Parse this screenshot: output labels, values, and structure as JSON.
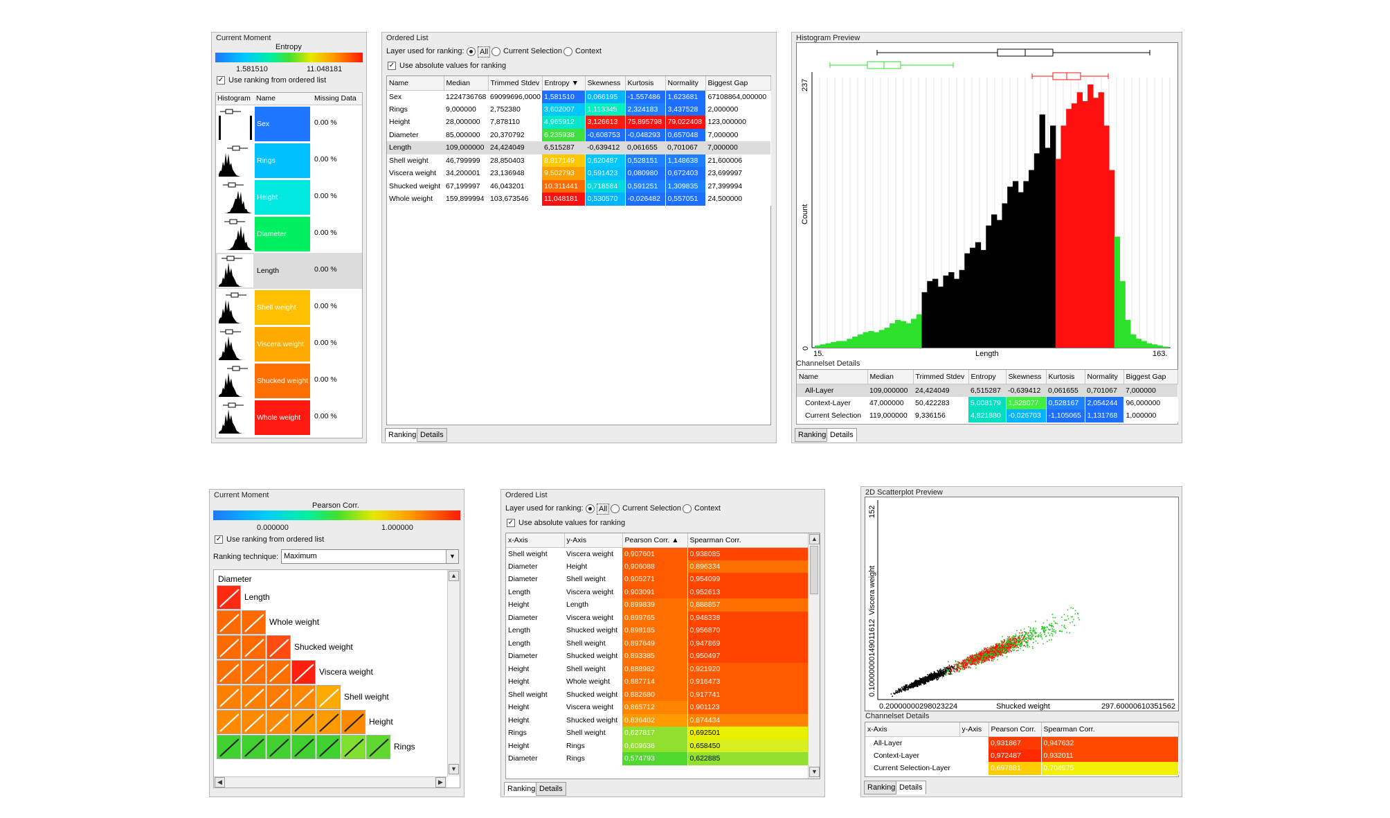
{
  "colors": {
    "blue": "#1e6fff",
    "sky": "#00b4ff",
    "cyan": "#00e8e0",
    "aqua": "#00f0b0",
    "green": "#3ee03a",
    "yellow": "#f4f000",
    "amber": "#ffb000",
    "orange": "#ff7a00",
    "redorange": "#ff4a00",
    "red": "#ff1010"
  },
  "panel1": {
    "title": "Current Moment",
    "measure": "Entropy",
    "min": "1.581510",
    "max": "11.048181",
    "checkbox": "Use ranking from ordered list",
    "headers": [
      "Histogram",
      "Name",
      "Missing Data"
    ],
    "rows": [
      {
        "name": "Sex",
        "missing": "0.00 %",
        "color": "#1e78ff"
      },
      {
        "name": "Rings",
        "missing": "0.00 %",
        "color": "#00c0ff"
      },
      {
        "name": "Height",
        "missing": "0.00 %",
        "color": "#00e8e0"
      },
      {
        "name": "Diameter",
        "missing": "0.00 %",
        "color": "#00f060"
      },
      {
        "name": "Length",
        "missing": "0.00 %",
        "color": ""
      },
      {
        "name": "Shell weight",
        "missing": "0.00 %",
        "color": "#ffc000"
      },
      {
        "name": "Viscera weight",
        "missing": "0.00 %",
        "color": "#ffaa00"
      },
      {
        "name": "Shucked weight",
        "missing": "0.00 %",
        "color": "#ff7000"
      },
      {
        "name": "Whole weight",
        "missing": "0.00 %",
        "color": "#ff1a10"
      }
    ]
  },
  "panel2": {
    "title": "Ordered List",
    "layer_label": "Layer used for ranking:",
    "opt_all": "All",
    "opt_sel": "Current Selection",
    "opt_ctx": "Context",
    "checkbox": "Use absolute values for ranking",
    "headers": [
      "Name",
      "Median",
      "Trimmed Stdev",
      "Entropy ▼",
      "Skewness",
      "Kurtosis",
      "Normality",
      "Biggest Gap"
    ],
    "rows": [
      [
        "Sex",
        "1224736768",
        "69099696,0000",
        "1,581510",
        "0,066195",
        "-1,557486",
        "1,623681",
        "67108864,000000"
      ],
      [
        "Rings",
        "9,000000",
        "2,752380",
        "3,602007",
        "1,113345",
        "2,324183",
        "3,437528",
        "2,000000"
      ],
      [
        "Height",
        "28,000000",
        "7,878110",
        "4,965912",
        "3,126613",
        "75,895798",
        "79,022408",
        "123,000000"
      ],
      [
        "Diameter",
        "85,000000",
        "20,370792",
        "6,235938",
        "-0,608753",
        "-0,048293",
        "0,657048",
        "7,000000"
      ],
      [
        "Length",
        "109,000000",
        "24,424049",
        "6,515287",
        "-0,639412",
        "0,061655",
        "0,701067",
        "7,000000"
      ],
      [
        "Shell weight",
        "46,799999",
        "28,850403",
        "8,817149",
        "0,620487",
        "0,528151",
        "1,148638",
        "21,600006"
      ],
      [
        "Viscera weight",
        "34,200001",
        "23,136948",
        "9,502793",
        "0,591423",
        "0,080980",
        "0,672403",
        "23,699997"
      ],
      [
        "Shucked weight",
        "67,199997",
        "46,043201",
        "10,311441",
        "0,718584",
        "0,591251",
        "1,309835",
        "27,399994"
      ],
      [
        "Whole weight",
        "159,899994",
        "103,673546",
        "11,048181",
        "0,530570",
        "-0,026482",
        "0,557051",
        "24,500000"
      ]
    ],
    "cellcolors": [
      [
        "#1e6fff",
        "#00b4ff",
        "#1e6fff",
        "#1e6fff"
      ],
      [
        "#00c8ff",
        "#00f0c0",
        "#1e80ff",
        "#1e6fff"
      ],
      [
        "#00e8c8",
        "#ff1a10",
        "#ff1010",
        "#ff1010"
      ],
      [
        "#40e040",
        "#1e6fff",
        "#1e6fff",
        "#1e6fff"
      ],
      [
        "",
        "",
        "",
        ""
      ],
      [
        "#ffc800",
        "#00c8ff",
        "#1e80ff",
        "#1e80ff"
      ],
      [
        "#ffa000",
        "#00c0ff",
        "#1e70ff",
        "#1e70ff"
      ],
      [
        "#ff6a00",
        "#00d8e0",
        "#1e80ff",
        "#1e80ff"
      ],
      [
        "#ff1010",
        "#00b4ff",
        "#1e6fff",
        "#1e6fff"
      ]
    ],
    "tabs": [
      "Ranking",
      "Details"
    ]
  },
  "panel3": {
    "title": "Histogram Preview",
    "ylabel": "Count",
    "ymax": "237",
    "ymin": "0",
    "xlabel": "Length",
    "xmin": "15.",
    "xmax": "163.",
    "details_title": "Channelset Details",
    "headers": [
      "Name",
      "Median",
      "Trimmed Stdev",
      "Entropy",
      "Skewness",
      "Kurtosis",
      "Normality",
      "Biggest Gap"
    ],
    "rows": [
      [
        "All-Layer",
        "109,000000",
        "24,424049",
        "6,515287",
        "-0,639412",
        "0,061655",
        "0,701067",
        "7,000000"
      ],
      [
        "Context-Layer",
        "47,000000",
        "50,422283",
        "5,008179",
        "1,528077",
        "0,528167",
        "2,054244",
        "96,000000"
      ],
      [
        "Current Selection",
        "119,000000",
        "9,336156",
        "4,821880",
        "-0,026703",
        "-1,105065",
        "1,131768",
        "1,000000"
      ]
    ],
    "cellcolors": [
      [
        "",
        "",
        "",
        ""
      ],
      [
        "#00e0c0",
        "#40f040",
        "#1e80ff",
        "#1e6fff"
      ],
      [
        "#00e0c0",
        "#00b4ff",
        "#1e6fff",
        "#1e6fff"
      ]
    ],
    "tabs": [
      "Ranking",
      "Details"
    ],
    "chart_data": {
      "type": "bar",
      "x_range": [
        15,
        163
      ],
      "ylim": [
        0,
        237
      ],
      "xlabel": "Length",
      "ylabel": "Count",
      "series": [
        {
          "values": [
            2,
            3,
            4,
            5,
            6,
            6,
            8,
            10,
            12,
            14,
            15,
            14,
            16,
            18,
            22,
            25,
            24,
            22,
            26,
            30
          ]
        },
        {
          "values": [
            50,
            60,
            62,
            55,
            65,
            68,
            62,
            70,
            85,
            90,
            95,
            88,
            110,
            120,
            115,
            130,
            145,
            150,
            140,
            150,
            160,
            175,
            210,
            180,
            200
          ]
        },
        {
          "values": [
            170,
            200,
            215,
            220,
            230,
            222,
            237,
            225,
            230,
            200,
            160
          ]
        },
        {
          "values": [
            100,
            60,
            25,
            12,
            8,
            6,
            4,
            3,
            2,
            1
          ]
        }
      ]
    }
  },
  "panel4": {
    "title": "Current Moment",
    "measure": "Pearson Corr.",
    "min": "0.000000",
    "max": "1.000000",
    "checkbox": "Use ranking from ordered list",
    "technique_label": "Ranking technique:",
    "technique_value": "Maximum",
    "vars": [
      "Diameter",
      "Length",
      "Whole weight",
      "Shucked weight",
      "Viscera weight",
      "Shell weight",
      "Height",
      "Rings"
    ]
  },
  "panel5": {
    "title": "Ordered List",
    "layer_label": "Layer used for ranking:",
    "opt_all": "All",
    "opt_sel": "Current Selection",
    "opt_ctx": "Context",
    "checkbox": "Use absolute values for ranking",
    "headers": [
      "x-Axis",
      "y-Axis",
      "Pearson Corr. ▲",
      "Spearman Corr."
    ],
    "rows": [
      [
        "Shell weight",
        "Viscera weight",
        "0,907601",
        "0,938085"
      ],
      [
        "Diameter",
        "Height",
        "0,906088",
        "0,896334"
      ],
      [
        "Diameter",
        "Shell weight",
        "0,905271",
        "0,954099"
      ],
      [
        "Length",
        "Viscera weight",
        "0,903091",
        "0,952613"
      ],
      [
        "Height",
        "Length",
        "0,899839",
        "0,888857"
      ],
      [
        "Diameter",
        "Viscera weight",
        "0,899765",
        "0,948338"
      ],
      [
        "Length",
        "Shucked weight",
        "0,898185",
        "0,956870"
      ],
      [
        "Length",
        "Shell weight",
        "0,897649",
        "0,947869"
      ],
      [
        "Diameter",
        "Shucked weight",
        "0,893385",
        "0,950497"
      ],
      [
        "Height",
        "Shell weight",
        "0,888982",
        "0,921920"
      ],
      [
        "Height",
        "Whole weight",
        "0,887714",
        "0,916473"
      ],
      [
        "Shell weight",
        "Shucked weight",
        "0,882680",
        "0,917741"
      ],
      [
        "Height",
        "Viscera weight",
        "0,865712",
        "0,901123"
      ],
      [
        "Height",
        "Shucked weight",
        "0,836402",
        "0,874434"
      ],
      [
        "Rings",
        "Shell weight",
        "0,627817",
        "0,692501"
      ],
      [
        "Height",
        "Rings",
        "0,609636",
        "0,658450"
      ],
      [
        "Diameter",
        "Rings",
        "0,574793",
        "0,622885"
      ]
    ],
    "tabs": [
      "Ranking",
      "Details"
    ]
  },
  "panel6": {
    "title": "2D Scatterplot Preview",
    "ymax": "152",
    "ylabel": "Viscera weight",
    "ymin_label": "0.10000000149011612",
    "xmin": "0.20000000298023224",
    "xlabel": "Shucked weight",
    "xmax": "297.60000610351562",
    "details_title": "Channelset Details",
    "headers": [
      "x-Axis",
      "y-Axis",
      "Pearson Corr.",
      "Spearman Corr."
    ],
    "rows": [
      [
        "All-Layer",
        "",
        "0,931867",
        "0,947632"
      ],
      [
        "Context-Layer",
        "",
        "0,972487",
        "0,932011"
      ],
      [
        "Current Selection-Layer",
        "",
        "0,697881",
        "0,704975"
      ]
    ],
    "cellcolors": [
      [
        "#ff3a00",
        "#ff4a00"
      ],
      [
        "#ff2a00",
        "#ff4a00"
      ],
      [
        "#ffcc00",
        "#f0f000"
      ]
    ],
    "tabs": [
      "Ranking",
      "Details"
    ],
    "chart_data": {
      "type": "scatter",
      "xlim": [
        0.2,
        297.6
      ],
      "ylim": [
        0.1,
        152
      ],
      "xlabel": "Shucked weight",
      "ylabel": "Viscera weight",
      "series": [
        {
          "color": "black",
          "values": []
        },
        {
          "color": "red",
          "values": []
        },
        {
          "color": "green",
          "values": []
        }
      ]
    }
  }
}
